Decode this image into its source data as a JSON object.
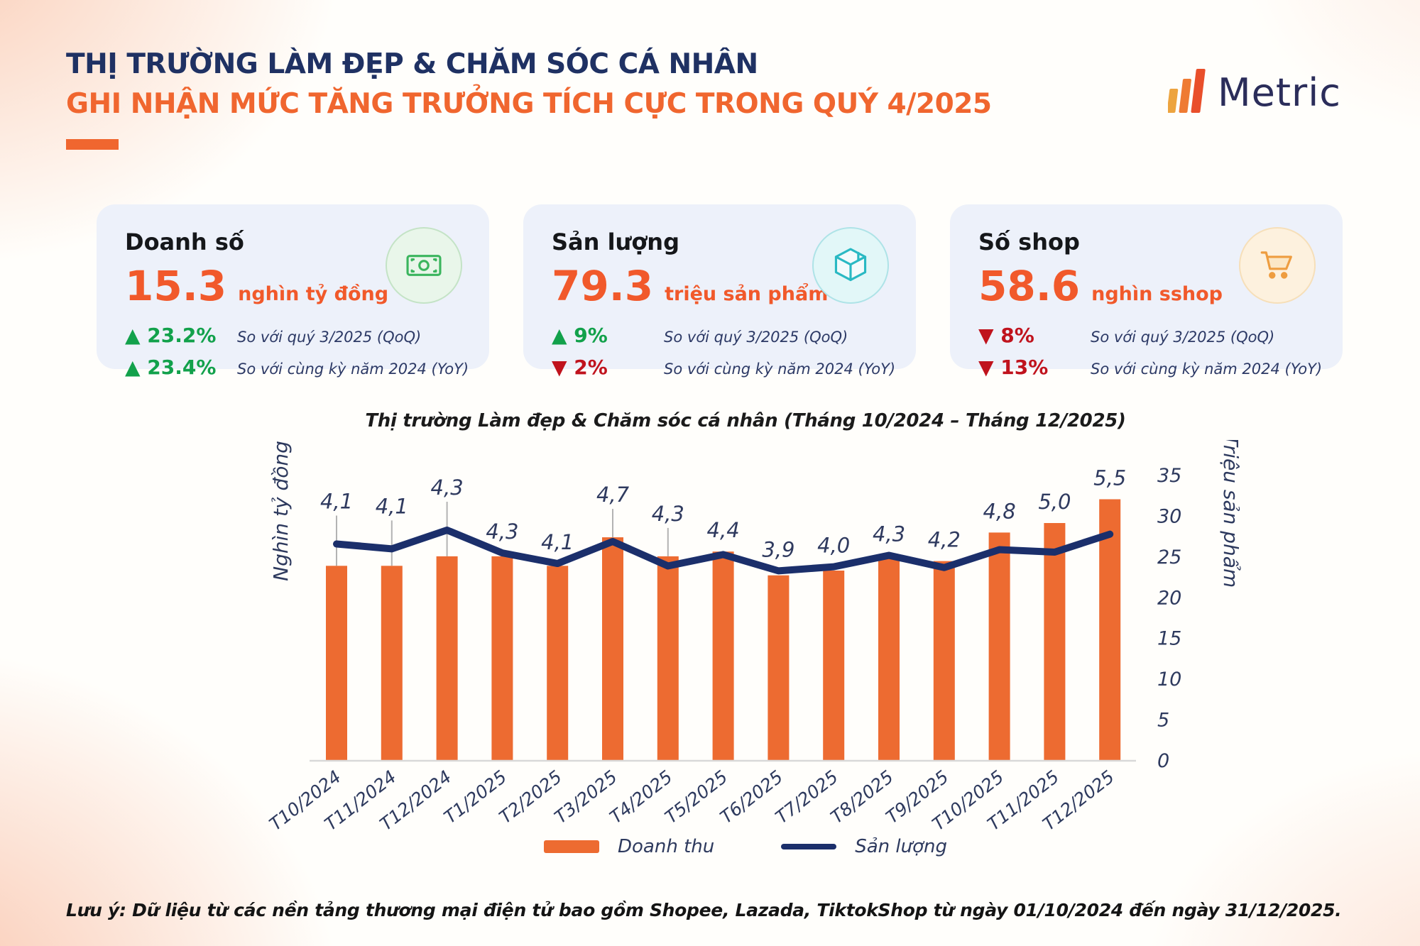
{
  "header": {
    "title_line1": "THỊ TRƯỜNG LÀM ĐẸP & CHĂM SÓC CÁ NHÂN",
    "title_line2": "GHI NHẬN MỨC TĂNG TRƯỞNG TÍCH CỰC TRONG QUÝ 4/2025",
    "logo_text": "Metric"
  },
  "kpi_cards": [
    {
      "title": "Doanh số",
      "value": "15.3",
      "unit": "nghìn tỷ đồng",
      "icon": "money-icon",
      "rows": [
        {
          "change": "▲ 23.2%",
          "tone": "up",
          "label": "So với quý 3/2025 (QoQ)"
        },
        {
          "change": "▲ 23.4%",
          "tone": "up",
          "label": "So với cùng kỳ năm 2024 (YoY)"
        }
      ]
    },
    {
      "title": "Sản lượng",
      "value": "79.3",
      "unit": "triệu sản phẩm",
      "icon": "package-icon",
      "rows": [
        {
          "change": "▲ 9%",
          "tone": "up",
          "label": "So với quý 3/2025 (QoQ)"
        },
        {
          "change": "▼ 2%",
          "tone": "down",
          "label": "So với cùng kỳ năm 2024 (YoY)"
        }
      ]
    },
    {
      "title": "Số shop",
      "value": "58.6",
      "unit": "nghìn sshop",
      "icon": "cart-icon",
      "rows": [
        {
          "change": "▼ 8%",
          "tone": "down",
          "label": "So với quý 3/2025 (QoQ)"
        },
        {
          "change": "▼ 13%",
          "tone": "down",
          "label": "So với cùng kỳ năm 2024 (YoY)"
        }
      ]
    }
  ],
  "chart_data": {
    "type": "bar+line",
    "title": "Thị trường Làm đẹp & Chăm sóc cá nhân (Tháng 10/2024 – Tháng 12/2025)",
    "categories": [
      "T10/2024",
      "T11/2024",
      "T12/2024",
      "T1/2025",
      "T2/2025",
      "T3/2025",
      "T4/2025",
      "T5/2025",
      "T6/2025",
      "T7/2025",
      "T8/2025",
      "T9/2025",
      "T10/2025",
      "T11/2025",
      "T12/2025"
    ],
    "series": [
      {
        "name": "Doanh thu",
        "type": "bar",
        "axis": "left",
        "unit": "Nghìn tỷ đồng",
        "values": [
          4.1,
          4.1,
          4.3,
          4.3,
          4.1,
          4.7,
          4.3,
          4.4,
          3.9,
          4.0,
          4.3,
          4.2,
          4.8,
          5.0,
          5.5
        ],
        "labels": [
          "4,1",
          "4,1",
          "4,3",
          "4,3",
          "4,1",
          "4,7",
          "4,3",
          "4,4",
          "3,9",
          "4,0",
          "4,3",
          "4,2",
          "4,8",
          "5,0",
          "5,5"
        ]
      },
      {
        "name": "Sản lượng",
        "type": "line",
        "axis": "right",
        "unit": "Triệu sản phẩm",
        "values": [
          26.6,
          26.0,
          28.3,
          25.5,
          24.2,
          26.9,
          23.9,
          25.3,
          23.3,
          23.8,
          25.2,
          23.7,
          25.9,
          25.6,
          27.8
        ]
      }
    ],
    "left_axis_label": "Nghìn tỷ đồng",
    "right_axis_label": "Triệu sản phẩm",
    "right_axis_ticks": [
      0,
      5,
      10,
      15,
      20,
      25,
      30,
      35
    ],
    "right_axis_max": 35,
    "bar_axis_max": 6,
    "label_leader_indices": [
      0,
      1,
      2,
      5,
      6
    ],
    "legend_position": "bottom",
    "grid": false,
    "colors": {
      "bar": "#ed6b31",
      "line": "#1b2f6b"
    }
  },
  "footnote": "Lưu ý: Dữ liệu từ các nền tảng thương mại điện tử bao gồm Shopee, Lazada, TiktokShop từ ngày 01/10/2024 đến ngày 31/12/2025."
}
